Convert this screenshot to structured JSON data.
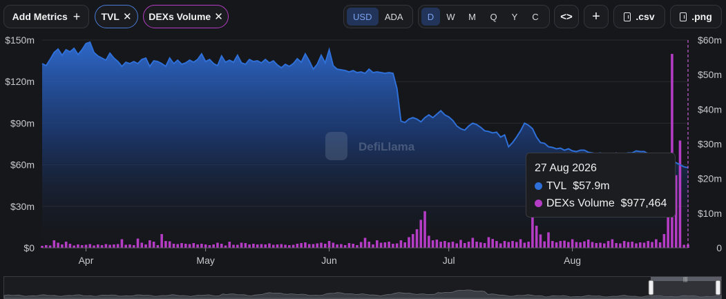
{
  "toolbar": {
    "add_metrics_label": "Add Metrics",
    "add_metrics_icon": "plus-icon",
    "metric_pills": [
      {
        "label": "TVL",
        "color": "#4a7bd6",
        "remove_icon": "close-icon"
      },
      {
        "label": "DEXs Volume",
        "color": "#b53cc4",
        "remove_icon": "close-icon"
      }
    ],
    "denominations": [
      {
        "label": "USD",
        "active": true
      },
      {
        "label": "ADA",
        "active": false
      }
    ],
    "periods": [
      {
        "label": "D",
        "active": true
      },
      {
        "label": "W",
        "active": false
      },
      {
        "label": "M",
        "active": false
      },
      {
        "label": "Q",
        "active": false
      },
      {
        "label": "Y",
        "active": false
      },
      {
        "label": "C",
        "active": false
      }
    ],
    "embed_icon": "code-icon",
    "add_icon": "plus-icon",
    "csv_label": ".csv",
    "csv_icon": "file-download-icon",
    "png_label": ".png",
    "png_icon": "file-download-icon"
  },
  "watermark": {
    "text": "DefiLlama",
    "icon": "llama-logo-icon"
  },
  "tooltip": {
    "date": "27 Aug 2026",
    "rows": [
      {
        "label": "TVL",
        "value": "$57.9m",
        "color": "#2e6fd8"
      },
      {
        "label": "DEXs Volume",
        "value": "$977,464",
        "color": "#b53cc4"
      }
    ]
  },
  "chart_data": {
    "type": "line",
    "title": "",
    "xlabel": "",
    "x_ticks": [
      "Apr",
      "May",
      "Jun",
      "Jul",
      "Aug"
    ],
    "x_tick_dates": [
      "2026-04-01",
      "2026-05-01",
      "2026-06-01",
      "2026-07-01",
      "2026-08-01"
    ],
    "x_range": [
      "2026-03-21",
      "2026-08-27"
    ],
    "ylim_left": [
      0,
      150000000
    ],
    "y_ticks_left": [
      "$0",
      "$30m",
      "$60m",
      "$90m",
      "$120m",
      "$150m"
    ],
    "ylim_right": [
      0,
      60000000
    ],
    "y_ticks_right": [
      "0",
      "$10m",
      "$20m",
      "$30m",
      "$40m",
      "$50m",
      "$60m"
    ],
    "grid": true,
    "legend": "none",
    "series": [
      {
        "name": "TVL",
        "axis": "left",
        "type": "area",
        "color": "#2e6fd8",
        "values": [
          133.0,
          131.5,
          136.0,
          141.0,
          143.5,
          139.0,
          143.0,
          141.5,
          144.0,
          139.5,
          143.0,
          147.5,
          148.5,
          141.0,
          138.5,
          137.0,
          135.5,
          140.5,
          137.0,
          134.5,
          131.0,
          134.0,
          133.0,
          134.5,
          133.0,
          136.0,
          137.0,
          131.0,
          135.0,
          134.5,
          133.0,
          131.0,
          137.0,
          133.0,
          135.5,
          132.5,
          133.5,
          135.5,
          134.0,
          136.0,
          140.0,
          134.5,
          136.0,
          133.0,
          131.5,
          138.5,
          134.0,
          135.5,
          134.0,
          139.0,
          133.5,
          132.5,
          136.0,
          134.5,
          135.0,
          133.5,
          136.0,
          133.5,
          135.0,
          132.0,
          130.0,
          132.5,
          131.0,
          133.0,
          136.5,
          134.0,
          140.0,
          135.0,
          129.0,
          132.5,
          139.0,
          133.5,
          143.0,
          131.5,
          129.0,
          128.5,
          128.0,
          127.0,
          128.0,
          126.5,
          127.0,
          126.0,
          129.0,
          126.5,
          127.0,
          126.5,
          126.0,
          126.5,
          126.0,
          115.0,
          91.5,
          90.5,
          93.0,
          94.0,
          93.0,
          91.0,
          94.0,
          96.0,
          94.0,
          96.5,
          99.0,
          96.0,
          94.5,
          92.0,
          88.0,
          86.0,
          85.0,
          88.0,
          90.0,
          89.0,
          87.0,
          84.5,
          84.0,
          83.0,
          83.5,
          80.0,
          81.5,
          73.0,
          76.0,
          80.0,
          84.5,
          90.0,
          88.5,
          86.0,
          80.0,
          76.0,
          75.5,
          73.0,
          72.5,
          71.5,
          72.0,
          70.5,
          71.5,
          70.0,
          69.5,
          70.5,
          70.5,
          69.0,
          68.5,
          68.0,
          68.5,
          67.5,
          68.0,
          67.5,
          68.5,
          67.0,
          68.0,
          68.5,
          68.5,
          70.0,
          69.5,
          69.5,
          68.0,
          67.5,
          67.0,
          66.0,
          66.5,
          63.5,
          61.0,
          61.5,
          60.0,
          58.5,
          57.9
        ]
      },
      {
        "name": "DEXs Volume",
        "axis": "right",
        "type": "bar",
        "color": "#b53cc4",
        "values": [
          0.6,
          0.8,
          0.7,
          2.2,
          1.5,
          1.0,
          1.8,
          1.2,
          0.7,
          1.0,
          0.8,
          0.9,
          1.1,
          0.7,
          1.0,
          0.8,
          1.1,
          0.9,
          1.0,
          1.1,
          2.5,
          0.9,
          1.0,
          0.8,
          2.7,
          1.5,
          1.0,
          2.2,
          1.8,
          0.8,
          4.0,
          2.0,
          1.9,
          1.2,
          1.1,
          1.4,
          1.2,
          1.1,
          1.4,
          1.0,
          1.2,
          1.0,
          0.8,
          1.0,
          1.5,
          1.2,
          0.7,
          1.8,
          0.9,
          0.9,
          1.5,
          1.4,
          1.0,
          1.2,
          1.0,
          1.1,
          1.0,
          1.3,
          0.9,
          1.0,
          1.1,
          0.9,
          0.8,
          0.9,
          1.2,
          1.4,
          1.6,
          1.1,
          1.1,
          1.3,
          1.5,
          1.2,
          2.0,
          1.5,
          1.0,
          1.1,
          0.8,
          1.4,
          1.2,
          0.8,
          1.7,
          2.9,
          1.8,
          1.0,
          2.2,
          1.5,
          1.6,
          1.8,
          1.2,
          1.3,
          2.2,
          1.6,
          3.1,
          4.0,
          5.4,
          8.1,
          10.6,
          3.5,
          2.2,
          2.4,
          1.8,
          2.0,
          1.6,
          1.8,
          1.3,
          2.3,
          1.4,
          1.8,
          2.9,
          1.8,
          1.6,
          1.4,
          3.1,
          2.6,
          2.0,
          1.3,
          2.0,
          1.7,
          2.0,
          1.7,
          2.5,
          1.5,
          1.8,
          9.4,
          6.4,
          3.9,
          1.9,
          4.5,
          2.0,
          1.6,
          2.0,
          2.1,
          1.7,
          2.5,
          1.7,
          1.6,
          1.9,
          2.4,
          1.7,
          1.4,
          1.5,
          1.3,
          2.0,
          2.5,
          1.4,
          1.3,
          2.0,
          1.7,
          1.8,
          1.3,
          1.6,
          1.5,
          2.0,
          1.7,
          2.5,
          1.6,
          4.0,
          13.0,
          56.0,
          21.0,
          31.0,
          0.9,
          1.0
        ]
      }
    ]
  }
}
